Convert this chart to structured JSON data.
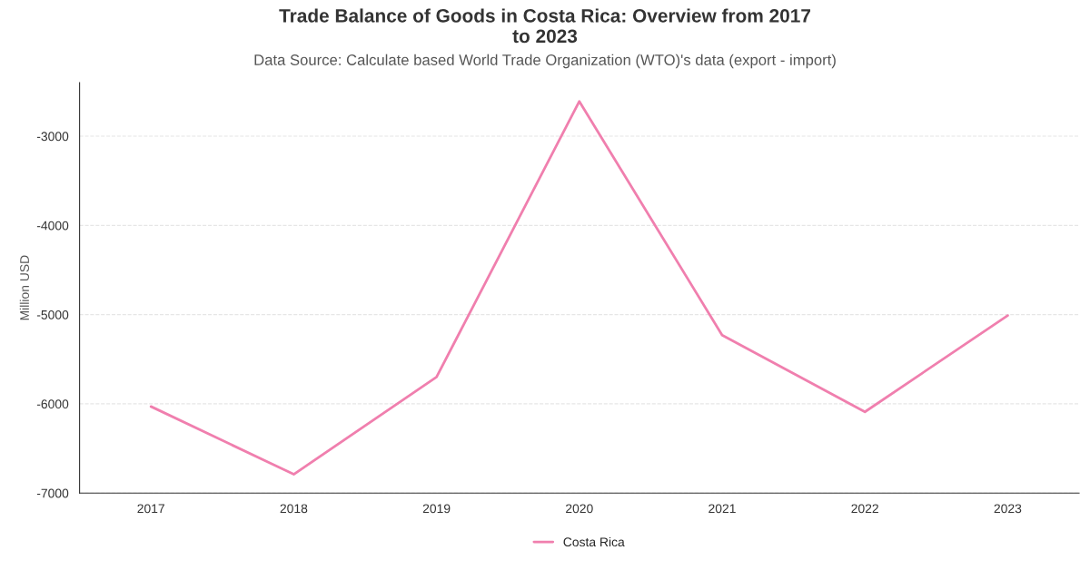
{
  "chart_data": {
    "type": "line",
    "title": "Trade Balance of Goods in Costa Rica: Overview from 2017\nto 2023",
    "subtitle": "Data Source: Calculate based World Trade Organization (WTO)'s data (export - import)",
    "ylabel": "Million USD",
    "categories": [
      "2017",
      "2018",
      "2019",
      "2020",
      "2021",
      "2022",
      "2023"
    ],
    "series": [
      {
        "name": "Costa Rica",
        "color": "#f07fae",
        "values": [
          -6030,
          -6790,
          -5700,
          -2610,
          -5230,
          -6090,
          -5010
        ]
      }
    ],
    "ylim": [
      -7000,
      -2400
    ],
    "yticks": [
      -7000,
      -6000,
      -5000,
      -4000,
      -3000
    ],
    "grid": "y",
    "legend": "bottom",
    "marker": "none",
    "line_style": "solid"
  }
}
